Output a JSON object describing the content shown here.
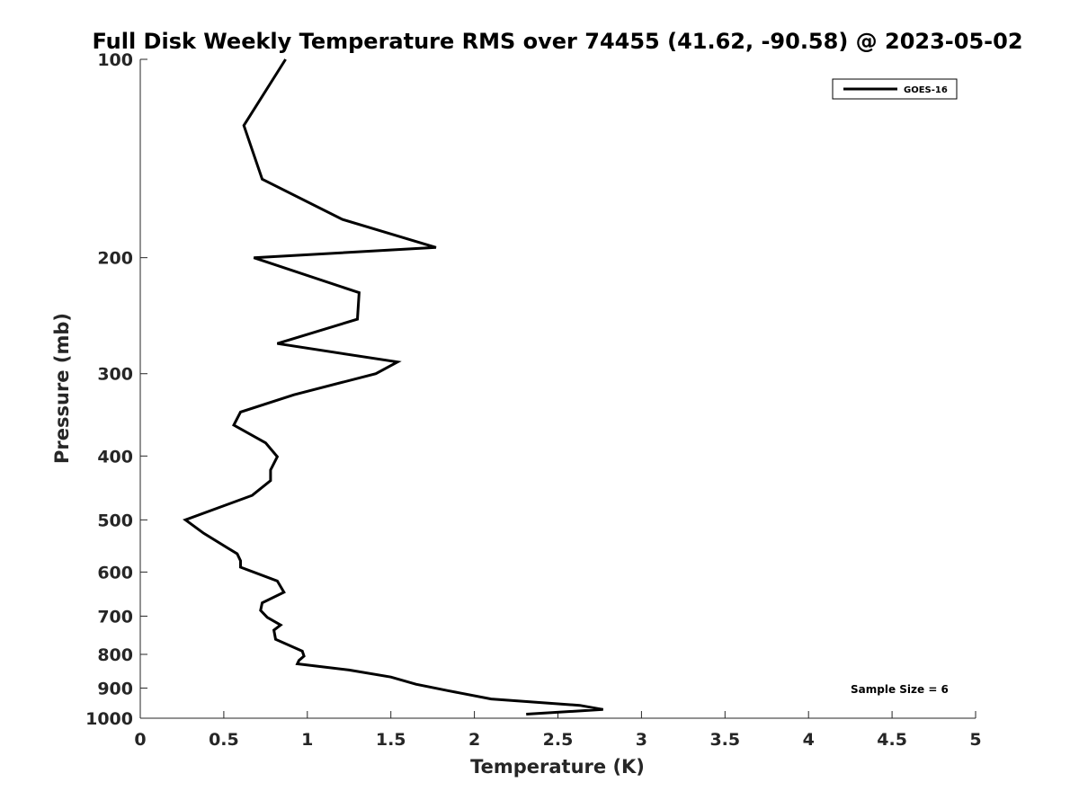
{
  "chart_data": {
    "type": "line",
    "title": "Full Disk Weekly Temperature RMS over 74455 (41.62, -90.58) @ 2023-05-02",
    "xlabel": "Temperature (K)",
    "ylabel": "Pressure (mb)",
    "xlim": [
      0,
      5
    ],
    "ylim": [
      100,
      1000
    ],
    "y_scale": "log",
    "y_reversed": true,
    "x_ticks": [
      0,
      0.5,
      1,
      1.5,
      2,
      2.5,
      3,
      3.5,
      4,
      4.5,
      5
    ],
    "x_tick_labels": [
      "0",
      "0.5",
      "1",
      "1.5",
      "2",
      "2.5",
      "3",
      "3.5",
      "4",
      "4.5",
      "5"
    ],
    "y_ticks": [
      100,
      200,
      300,
      400,
      500,
      600,
      700,
      800,
      900,
      1000
    ],
    "y_tick_labels": [
      "100",
      "200",
      "300",
      "400",
      "500",
      "600",
      "700",
      "800",
      "900",
      "1000"
    ],
    "grid": false,
    "legend_position": "top-right",
    "annotation": "Sample Size = 6",
    "series": [
      {
        "name": "GOES-16",
        "color": "#000000",
        "points": [
          [
            0.87,
            100
          ],
          [
            0.62,
            126
          ],
          [
            0.73,
            152
          ],
          [
            1.21,
            175
          ],
          [
            1.77,
            193
          ],
          [
            0.68,
            200
          ],
          [
            1.31,
            226
          ],
          [
            1.3,
            248
          ],
          [
            0.82,
            270
          ],
          [
            1.54,
            288
          ],
          [
            1.41,
            300
          ],
          [
            0.92,
            323
          ],
          [
            0.6,
            343
          ],
          [
            0.56,
            359
          ],
          [
            0.75,
            382
          ],
          [
            0.82,
            401
          ],
          [
            0.78,
            420
          ],
          [
            0.78,
            436
          ],
          [
            0.67,
            459
          ],
          [
            0.27,
            500
          ],
          [
            0.38,
            524
          ],
          [
            0.58,
            563
          ],
          [
            0.6,
            577
          ],
          [
            0.6,
            590
          ],
          [
            0.82,
            619
          ],
          [
            0.86,
            644
          ],
          [
            0.73,
            668
          ],
          [
            0.72,
            686
          ],
          [
            0.76,
            703
          ],
          [
            0.84,
            722
          ],
          [
            0.8,
            735
          ],
          [
            0.81,
            759
          ],
          [
            0.97,
            791
          ],
          [
            0.98,
            805
          ],
          [
            0.95,
            817
          ],
          [
            0.94,
            827
          ],
          [
            1.25,
            845
          ],
          [
            1.5,
            866
          ],
          [
            1.65,
            888
          ],
          [
            1.84,
            908
          ],
          [
            2.1,
            935
          ],
          [
            2.63,
            956
          ],
          [
            2.77,
            970
          ],
          [
            2.31,
            986
          ]
        ]
      }
    ]
  }
}
